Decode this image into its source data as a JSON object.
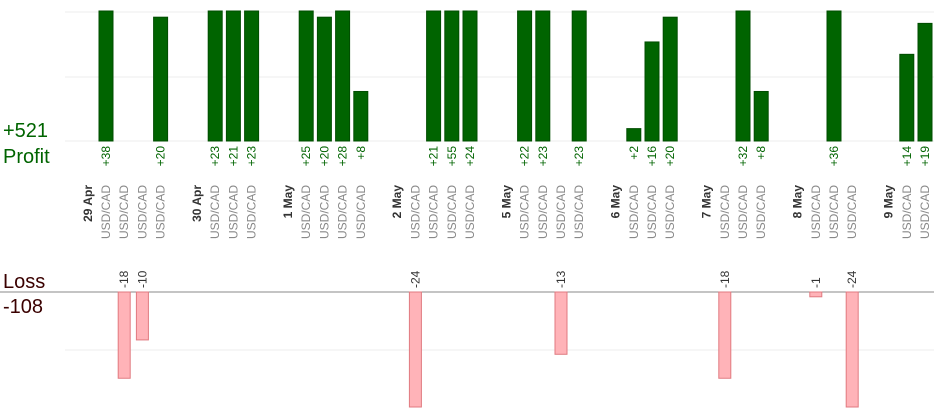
{
  "chart_data": {
    "type": "bar",
    "profit": {
      "total_label": "+521",
      "title": "Profit",
      "ylim": [
        0,
        21
      ],
      "trades": [
        {
          "slot": 0,
          "value": 38,
          "label": "+38",
          "pair": "USD/CAD"
        },
        {
          "slot": 3,
          "value": 20,
          "label": "+20",
          "pair": "USD/CAD"
        },
        {
          "slot": 6,
          "value": 23,
          "label": "+23",
          "pair": "USD/CAD"
        },
        {
          "slot": 7,
          "value": 21,
          "label": "+21",
          "pair": "USD/CAD"
        },
        {
          "slot": 8,
          "value": 23,
          "label": "+23",
          "pair": "USD/CAD"
        },
        {
          "slot": 11,
          "value": 25,
          "label": "+25",
          "pair": "USD/CAD"
        },
        {
          "slot": 12,
          "value": 20,
          "label": "+20",
          "pair": "USD/CAD"
        },
        {
          "slot": 13,
          "value": 28,
          "label": "+28",
          "pair": "USD/CAD"
        },
        {
          "slot": 14,
          "value": 8,
          "label": "+8",
          "pair": "USD/CAD"
        },
        {
          "slot": 18,
          "value": 21,
          "label": "+21",
          "pair": "USD/CAD"
        },
        {
          "slot": 19,
          "value": 55,
          "label": "+55",
          "pair": "USD/CAD"
        },
        {
          "slot": 20,
          "value": 24,
          "label": "+24",
          "pair": "USD/CAD"
        },
        {
          "slot": 23,
          "value": 22,
          "label": "+22",
          "pair": "USD/CAD"
        },
        {
          "slot": 24,
          "value": 23,
          "label": "+23",
          "pair": "USD/CAD"
        },
        {
          "slot": 26,
          "value": 23,
          "label": "+23",
          "pair": "USD/CAD"
        },
        {
          "slot": 29,
          "value": 2,
          "label": "+2",
          "pair": "USD/CAD"
        },
        {
          "slot": 30,
          "value": 16,
          "label": "+16",
          "pair": "USD/CAD"
        },
        {
          "slot": 31,
          "value": 20,
          "label": "+20",
          "pair": "USD/CAD"
        },
        {
          "slot": 35,
          "value": 32,
          "label": "+32",
          "pair": "USD/CAD"
        },
        {
          "slot": 36,
          "value": 8,
          "label": "+8",
          "pair": "USD/CAD"
        },
        {
          "slot": 40,
          "value": 36,
          "label": "+36",
          "pair": "USD/CAD"
        },
        {
          "slot": 44,
          "value": 14,
          "label": "+14",
          "pair": "USD/CAD"
        },
        {
          "slot": 45,
          "value": 19,
          "label": "+19",
          "pair": "USD/CAD"
        }
      ]
    },
    "loss": {
      "total_label": "-108",
      "title": "Loss",
      "ylim": [
        0,
        24
      ],
      "trades": [
        {
          "slot": 1,
          "value": 18,
          "label": "-18",
          "pair": "USD/CAD"
        },
        {
          "slot": 2,
          "value": 10,
          "label": "-10",
          "pair": "USD/CAD"
        },
        {
          "slot": 17,
          "value": 24,
          "label": "-24",
          "pair": "USD/CAD"
        },
        {
          "slot": 25,
          "value": 13,
          "label": "-13",
          "pair": "USD/CAD"
        },
        {
          "slot": 34,
          "value": 18,
          "label": "-18",
          "pair": "USD/CAD"
        },
        {
          "slot": 39,
          "value": 1,
          "label": "-1",
          "pair": "USD/CAD"
        },
        {
          "slot": 41,
          "value": 24,
          "label": "-24",
          "pair": "USD/CAD"
        }
      ]
    },
    "dates": [
      {
        "slot": -1,
        "label": "29 Apr"
      },
      {
        "slot": 5,
        "label": "30 Apr"
      },
      {
        "slot": 10,
        "label": "1 May"
      },
      {
        "slot": 16,
        "label": "2 May"
      },
      {
        "slot": 22,
        "label": "5 May"
      },
      {
        "slot": 28,
        "label": "6 May"
      },
      {
        "slot": 33,
        "label": "7 May"
      },
      {
        "slot": 38,
        "label": "8 May"
      },
      {
        "slot": 43,
        "label": "9 May"
      }
    ],
    "colors": {
      "profit_bar": "#006400",
      "loss_bar": "#ffb3b8",
      "profit_text": "#006400",
      "loss_text": "#3a0000"
    }
  }
}
